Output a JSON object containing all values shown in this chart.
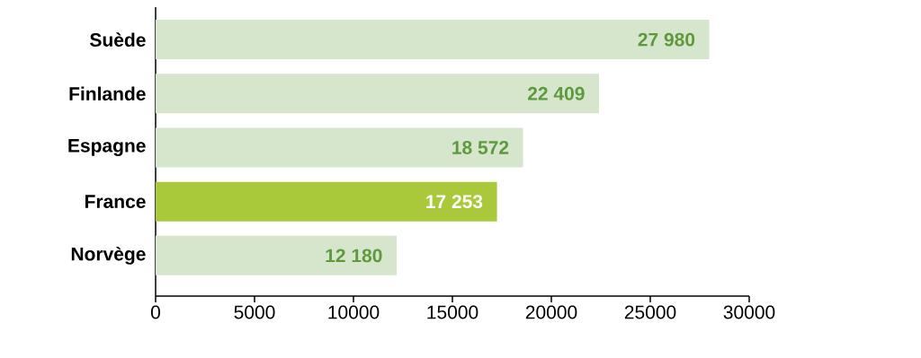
{
  "chart_data": {
    "type": "bar",
    "orientation": "horizontal",
    "categories": [
      "Suède",
      "Finlande",
      "Espagne",
      "France",
      "Norvège"
    ],
    "values": [
      27980,
      22409,
      18572,
      17253,
      12180
    ],
    "colors": [
      "#d5e6cc",
      "#d5e6cc",
      "#d5e6cc",
      "#a9c93a",
      "#d5e6cc"
    ],
    "value_labels": [
      "27 980",
      "22 409",
      "18 572",
      "17 253",
      "12 180"
    ],
    "xlim": [
      0,
      30000
    ],
    "xticks": [
      0,
      5000,
      10000,
      15000,
      20000,
      25000,
      30000
    ]
  }
}
